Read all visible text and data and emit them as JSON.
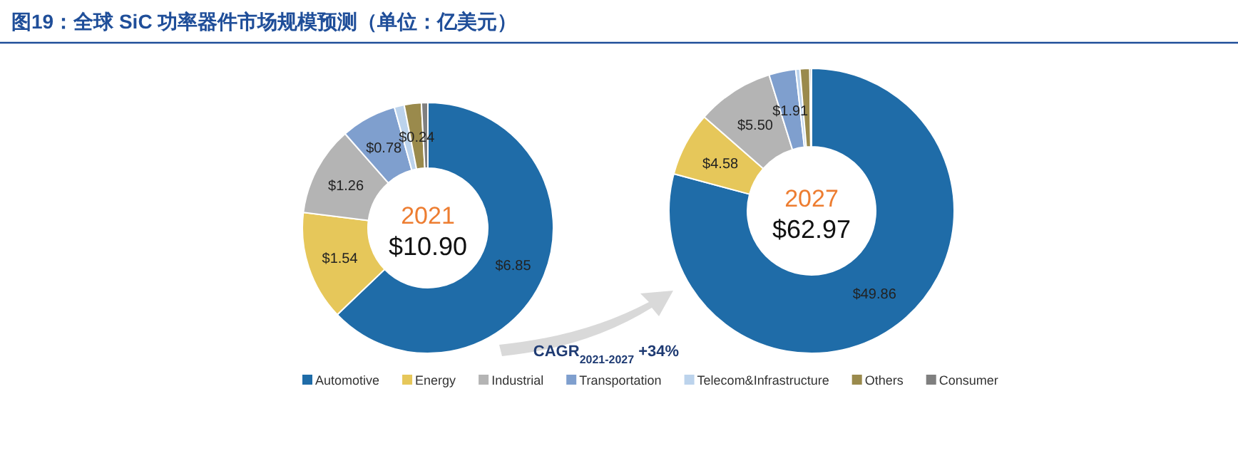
{
  "chart_data": [
    {
      "type": "donut",
      "title": "图19：全球 SiC 功率器件市场规模预测（单位：亿美元）",
      "categories": [
        "Automotive",
        "Energy",
        "Industrial",
        "Transportation",
        "Telecom&Infrastructure",
        "Others",
        "Consumer"
      ],
      "values": [
        6.85,
        1.54,
        1.26,
        0.78,
        0.14,
        0.24,
        0.09
      ],
      "colors": [
        "#1f6ca8",
        "#e6c75a",
        "#b4b4b4",
        "#7f9fce",
        "#bcd3ec",
        "#9a8a4c",
        "#7f7f7f"
      ],
      "value_labels": [
        "$6.85",
        "$1.54",
        "$1.26",
        "$0.78",
        null,
        "$0.24",
        null
      ],
      "annotations": [
        "2021",
        "$10.90",
        "CAGR$_{2021-2027}$ +34%"
      ],
      "legend": "bottom"
    },
    {
      "type": "donut",
      "categories": [
        null,
        null,
        null,
        null,
        null,
        null,
        null
      ],
      "values": [
        49.86,
        4.58,
        5.5,
        1.91,
        0.3,
        0.7,
        0.12
      ],
      "colors": [
        "#1f6ca8",
        "#e6c75a",
        "#b4b4b4",
        "#7f9fce",
        "#bcd3ec",
        "#9a8a4c",
        "#7f7f7f"
      ],
      "value_labels": [
        "$49.86",
        "$4.58",
        "$5.50",
        "$1.91",
        null,
        null,
        null
      ],
      "annotations": [
        "2027",
        "$62.97"
      ]
    }
  ]
}
